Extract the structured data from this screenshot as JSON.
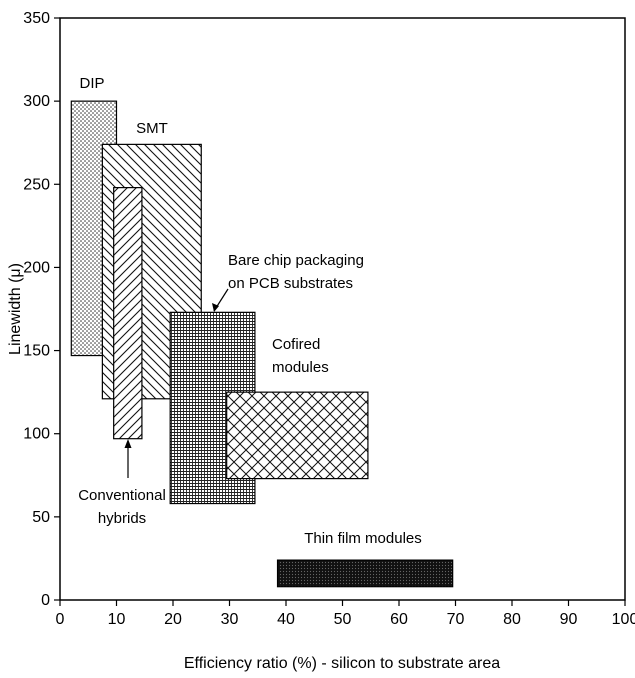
{
  "chart_data": {
    "type": "range-box",
    "title": "",
    "xlabel": "Efficiency ratio (%) - silicon to substrate area",
    "ylabel": "Linewidth (μ)",
    "xlim": [
      0,
      100
    ],
    "ylim": [
      0,
      350
    ],
    "xticks": [
      0,
      10,
      20,
      30,
      40,
      50,
      60,
      70,
      80,
      90,
      100
    ],
    "yticks": [
      0,
      50,
      100,
      150,
      200,
      250,
      300,
      350
    ],
    "grid": false,
    "regions": [
      {
        "name": "DIP",
        "label_lines": [
          "DIP"
        ],
        "x": [
          2,
          10
        ],
        "y": [
          147,
          300
        ],
        "pattern": "dots"
      },
      {
        "name": "SMT",
        "label_lines": [
          "SMT"
        ],
        "x": [
          7.5,
          25
        ],
        "y": [
          121,
          274
        ],
        "pattern": "diagonal-down"
      },
      {
        "name": "Conventional hybrids",
        "label_lines": [
          "Conventional",
          "hybrids"
        ],
        "x": [
          9.5,
          14.5
        ],
        "y": [
          97,
          248
        ],
        "pattern": "diagonal-up"
      },
      {
        "name": "Bare chip packaging on PCB substrates",
        "label_lines": [
          "Bare chip packaging",
          "on PCB substrates"
        ],
        "x": [
          19.5,
          34.5
        ],
        "y": [
          58,
          173
        ],
        "pattern": "fine-grid"
      },
      {
        "name": "Cofired modules",
        "label_lines": [
          "Cofired",
          "modules"
        ],
        "x": [
          29.5,
          54.5
        ],
        "y": [
          73,
          125
        ],
        "pattern": "crosshatch"
      },
      {
        "name": "Thin film modules",
        "label_lines": [
          "Thin film modules"
        ],
        "x": [
          38.5,
          69.5
        ],
        "y": [
          8,
          24
        ],
        "pattern": "dense-dark"
      }
    ]
  }
}
